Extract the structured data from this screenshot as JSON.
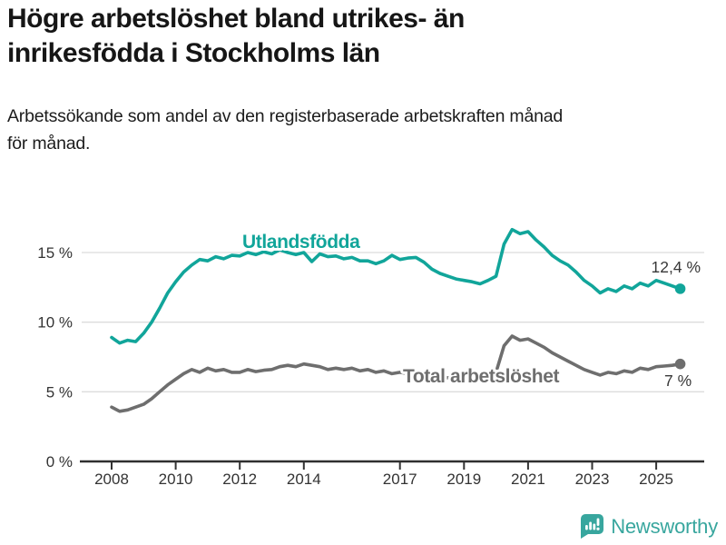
{
  "chart_data": {
    "type": "line",
    "title": "Högre arbetslöshet bland utrikes- än inrikesfödda i Stockholms län",
    "title_lines": [
      "Högre arbetslöshet bland utrikes- än",
      "inrikesfödda i Stockholms län"
    ],
    "subtitle": "Arbetssökande som andel av den registerbaserade arbetskraften månad för månad.",
    "subtitle_lines": [
      "Arbetssökande som andel av den registerbaserade arbetskraften månad",
      "för månad."
    ],
    "x_unit": "year (quarterly sampled monthly series)",
    "x_start": 2008.0,
    "x_step": 0.25,
    "xlim": [
      2007.0,
      2026.5
    ],
    "ylim": [
      0,
      17.5
    ],
    "grid": "horizontal",
    "legend": "inline-labels",
    "x_ticks": [
      2008,
      2010,
      2012,
      2014,
      2017,
      2019,
      2021,
      2023,
      2025
    ],
    "y_ticks": [
      {
        "v": 0,
        "label": "0 %"
      },
      {
        "v": 5,
        "label": "5 %"
      },
      {
        "v": 10,
        "label": "10 %"
      },
      {
        "v": 15,
        "label": "15 %"
      }
    ],
    "series": [
      {
        "name": "Utlandsfödda",
        "color": "#11a59a",
        "end_label": "12,4 %",
        "end_value": 12.4,
        "values": [
          8.9,
          8.5,
          8.7,
          8.6,
          9.2,
          10.0,
          11.0,
          12.1,
          12.9,
          13.6,
          14.1,
          14.5,
          14.4,
          14.7,
          14.55,
          14.8,
          14.75,
          15.0,
          14.85,
          15.05,
          14.9,
          15.2,
          15.0,
          14.85,
          15.0,
          14.35,
          14.9,
          14.7,
          14.75,
          14.55,
          14.65,
          14.4,
          14.4,
          14.2,
          14.4,
          14.8,
          14.5,
          14.6,
          14.65,
          14.3,
          13.8,
          13.5,
          13.3,
          13.1,
          13.0,
          12.9,
          12.75,
          13.0,
          13.3,
          15.6,
          16.65,
          16.35,
          16.5,
          15.9,
          15.4,
          14.8,
          14.4,
          14.1,
          13.6,
          13.0,
          12.6,
          12.1,
          12.4,
          12.2,
          12.6,
          12.4,
          12.8,
          12.6,
          13.0,
          12.8,
          12.6,
          12.4
        ]
      },
      {
        "name": "Total arbetslöshet",
        "color": "#6e6e6e",
        "end_label": "7 %",
        "end_value": 7.0,
        "values": [
          3.9,
          3.6,
          3.7,
          3.9,
          4.1,
          4.5,
          5.0,
          5.5,
          5.9,
          6.3,
          6.6,
          6.4,
          6.7,
          6.5,
          6.6,
          6.4,
          6.4,
          6.6,
          6.45,
          6.55,
          6.6,
          6.8,
          6.9,
          6.8,
          7.0,
          6.9,
          6.8,
          6.6,
          6.7,
          6.6,
          6.7,
          6.5,
          6.6,
          6.4,
          6.5,
          6.3,
          6.4,
          6.3,
          6.4,
          6.2,
          6.2,
          6.1,
          6.0,
          6.1,
          6.0,
          6.1,
          6.2,
          6.3,
          6.4,
          8.3,
          9.0,
          8.7,
          8.8,
          8.5,
          8.2,
          7.8,
          7.5,
          7.2,
          6.9,
          6.6,
          6.4,
          6.2,
          6.4,
          6.3,
          6.5,
          6.4,
          6.7,
          6.6,
          6.8,
          6.85,
          6.9,
          7.0
        ]
      }
    ]
  },
  "footer": {
    "brand": "Newsworthy",
    "brand_color": "#38a69e",
    "icon": "newsworthy-bar-chart-badge-icon"
  }
}
